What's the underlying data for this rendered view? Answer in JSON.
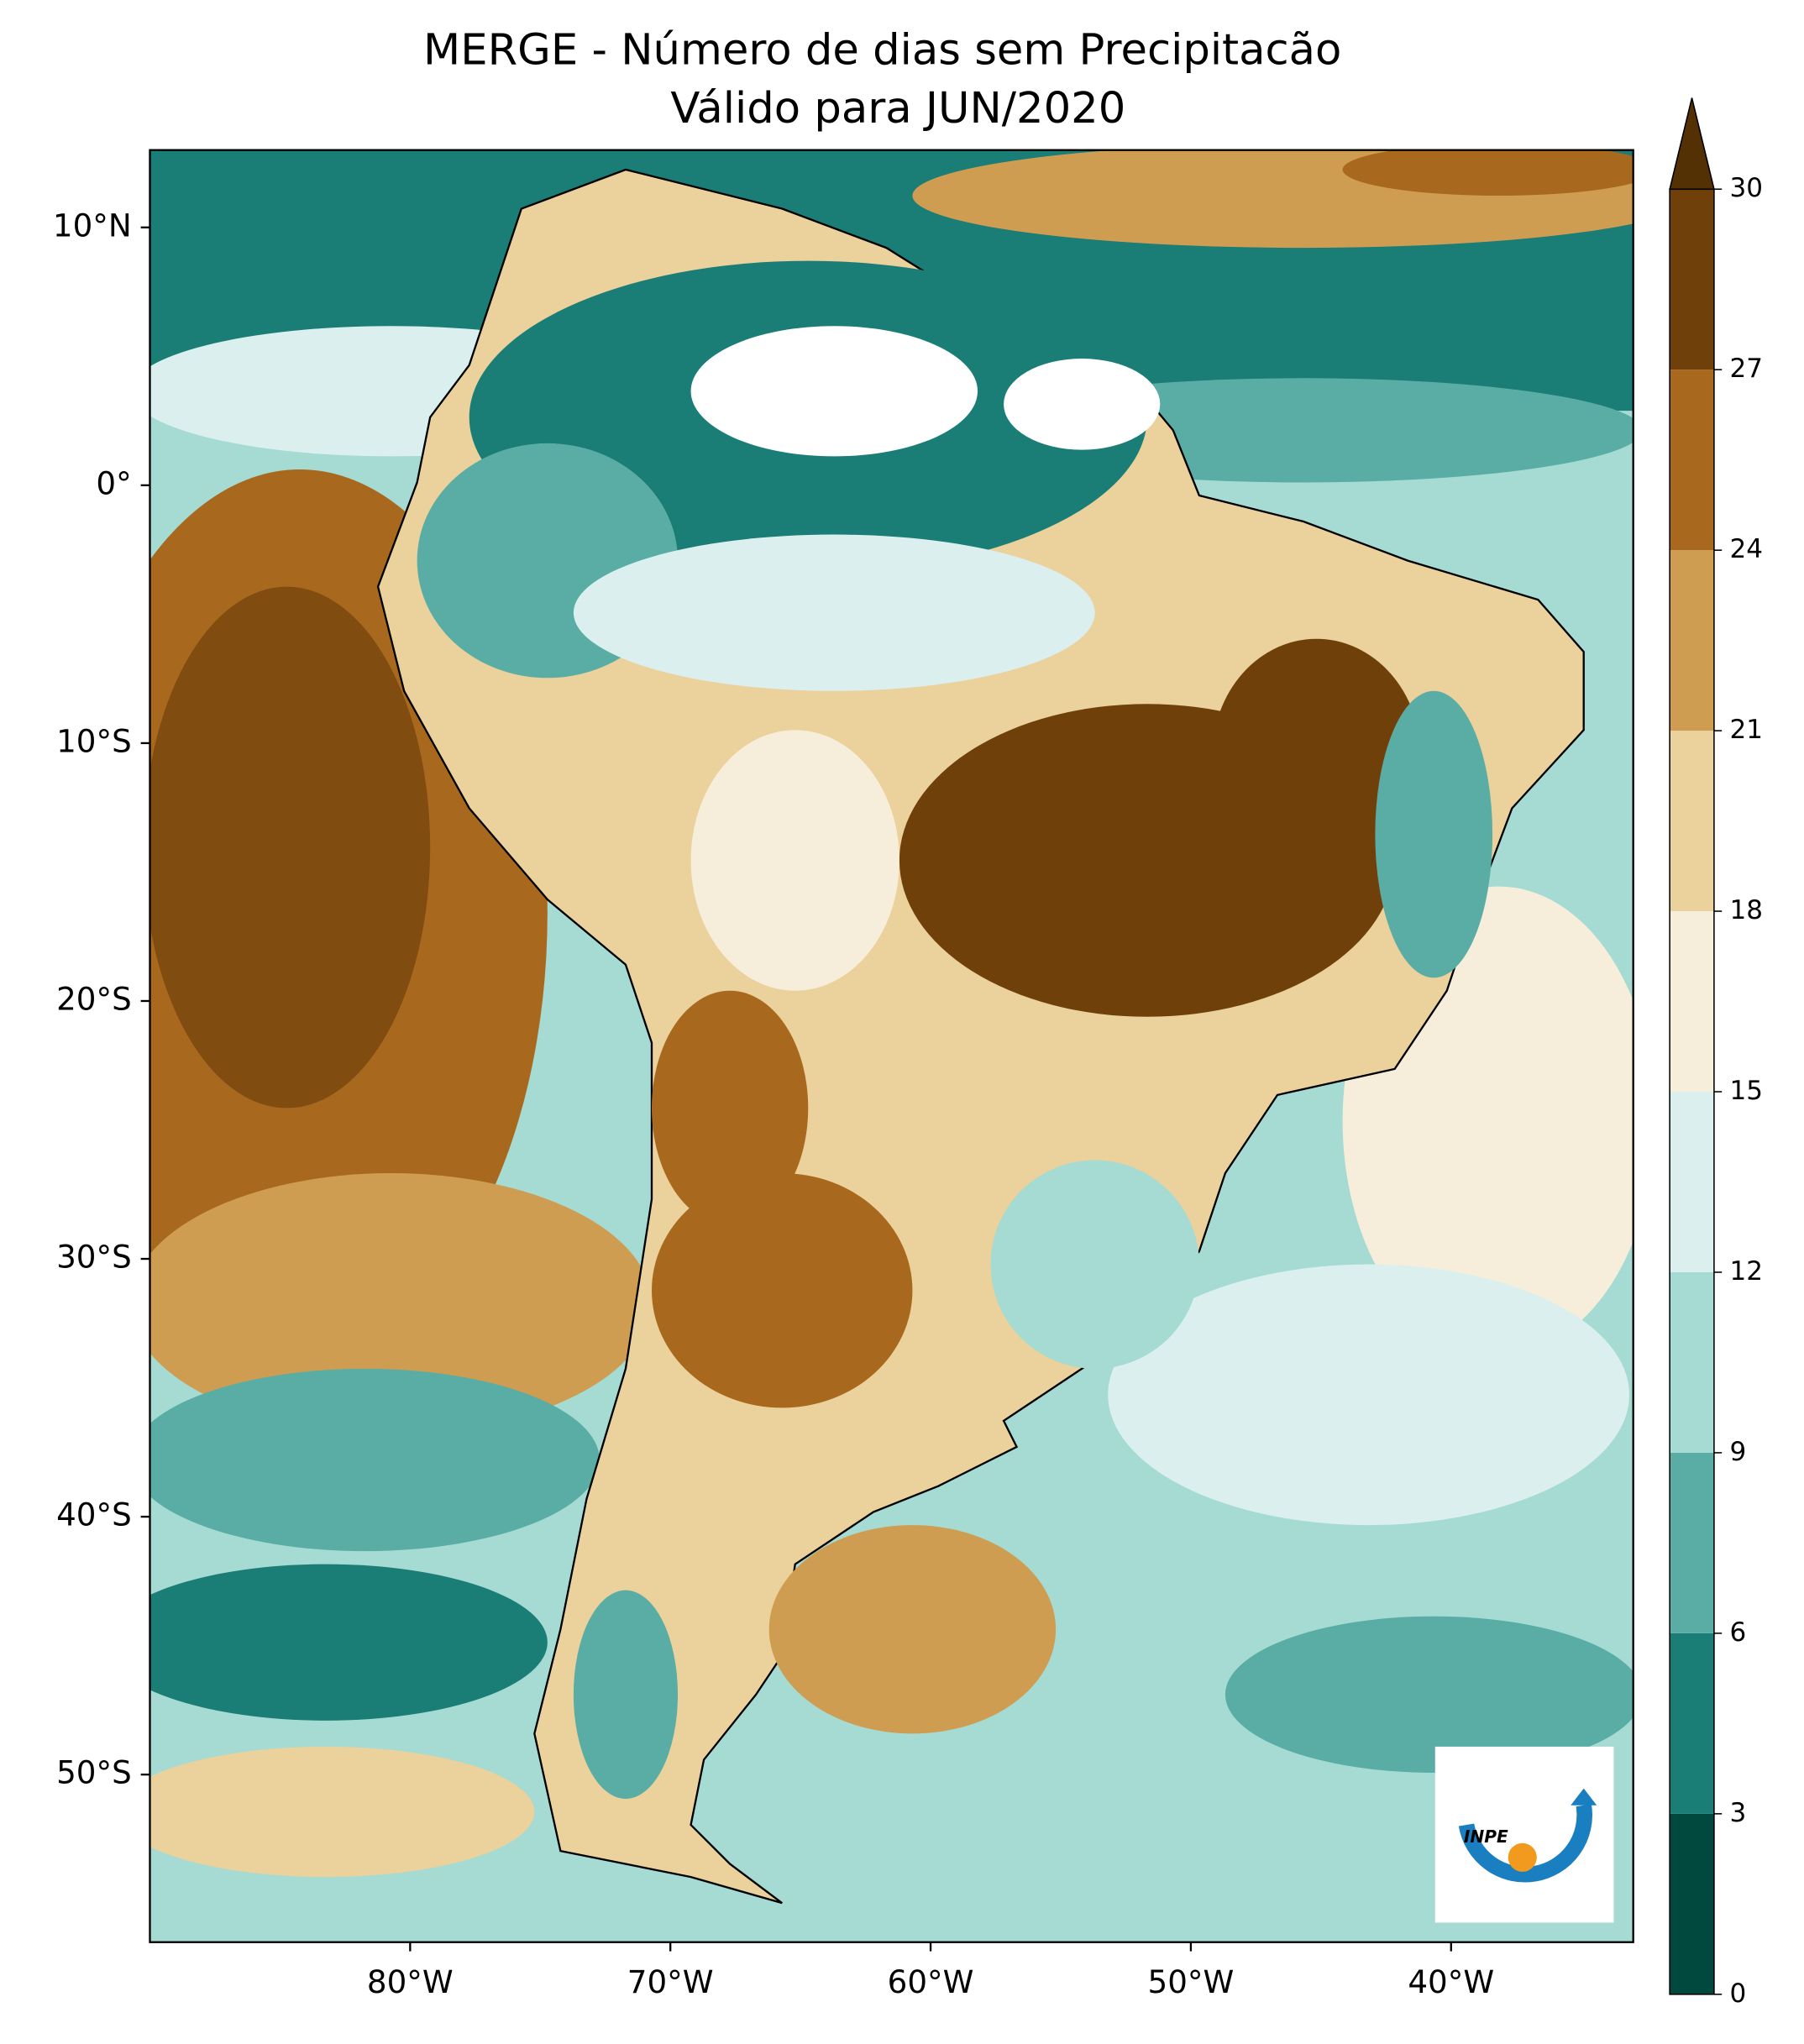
{
  "title": [
    "MERGE - Número de dias sem Precipitacão",
    "Válido para JUN/2020"
  ],
  "map": {
    "xlim": [
      -90,
      -33
    ],
    "ylim": [
      -56.5,
      13
    ],
    "yticks": [
      {
        "value": 10,
        "label": "10°N"
      },
      {
        "value": 0,
        "label": "0°"
      },
      {
        "value": -10,
        "label": "10°S"
      },
      {
        "value": -20,
        "label": "20°S"
      },
      {
        "value": -30,
        "label": "30°S"
      },
      {
        "value": -40,
        "label": "40°S"
      },
      {
        "value": -50,
        "label": "50°S"
      }
    ],
    "xticks": [
      {
        "value": -80,
        "label": "80°W"
      },
      {
        "value": -70,
        "label": "70°W"
      },
      {
        "value": -60,
        "label": "60°W"
      },
      {
        "value": -50,
        "label": "50°W"
      },
      {
        "value": -40,
        "label": "40°W"
      }
    ]
  },
  "colorbar": {
    "lim": [
      0,
      30
    ],
    "ticks": [
      0,
      3,
      6,
      9,
      12,
      15,
      18,
      21,
      24,
      27,
      30
    ],
    "colors": [
      "#01493e",
      "#1a7d76",
      "#5aada5",
      "#a5dbd2",
      "#dbf0ee",
      "#f6eedb",
      "#ebd19b",
      "#cf9d52",
      "#a8691e",
      "#70400a"
    ],
    "extend_color": "#543005"
  },
  "logo": {
    "text": "INPE"
  }
}
